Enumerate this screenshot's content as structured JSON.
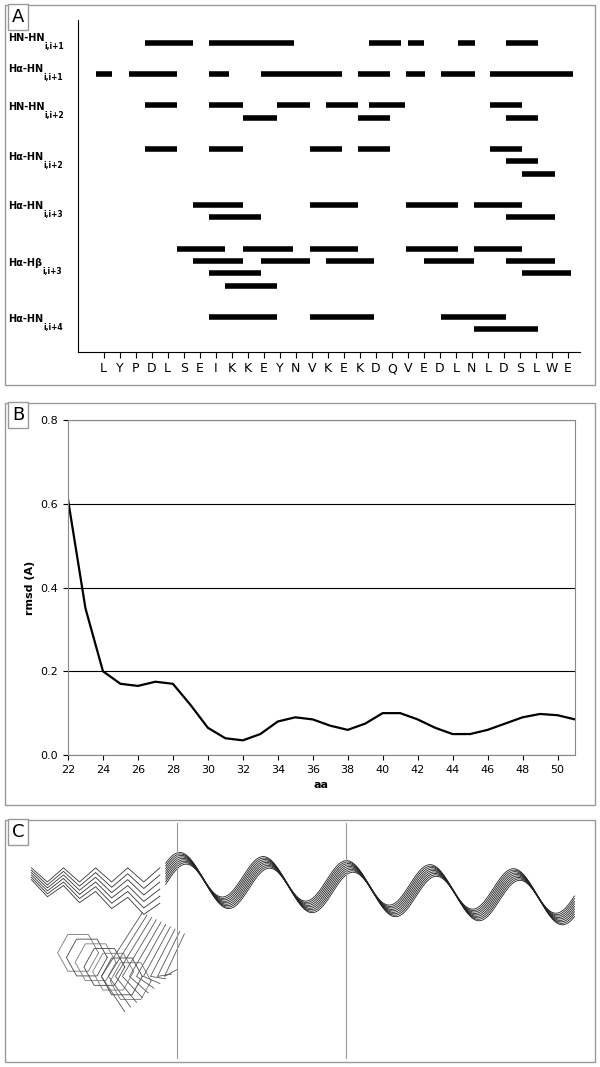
{
  "chart_data": [
    {
      "panel": "A",
      "type": "interval",
      "color": "#000000",
      "tick_labels": "x",
      "categories": [
        "L",
        "Y",
        "P",
        "D",
        "L",
        "S",
        "E",
        "I",
        "K",
        "K",
        "E",
        "Y",
        "N",
        "V",
        "K",
        "E",
        "K",
        "D",
        "Q",
        "V",
        "E",
        "D",
        "L",
        "N",
        "L",
        "D",
        "S",
        "L",
        "W",
        "E"
      ],
      "xlim": [
        -1.6,
        29.75
      ],
      "rows": [
        {
          "label": "HN-HN",
          "subscript": "i,i+1",
          "intervals": [
            [
              2.6,
              5.6
            ],
            [
              6.6,
              11.9
            ],
            [
              16.6,
              18.6
            ],
            [
              19.0,
              20.0
            ],
            [
              22.1,
              23.2
            ],
            [
              25.1,
              27.1
            ]
          ]
        },
        {
          "label": "Hα-HN",
          "subscript": "i,i+1",
          "intervals": [
            [
              -0.5,
              0.5
            ],
            [
              1.6,
              4.6
            ],
            [
              6.6,
              7.8
            ],
            [
              9.8,
              14.9
            ],
            [
              15.9,
              17.9
            ],
            [
              18.9,
              20.1
            ],
            [
              21.1,
              23.2
            ],
            [
              24.1,
              29.3
            ]
          ]
        },
        {
          "label": "HN-HN",
          "subscript": "i,i+2",
          "intervals": [
            [
              2.6,
              4.6
            ],
            [
              6.6,
              8.7
            ],
            [
              8.7,
              10.8
            ],
            [
              10.8,
              12.9
            ],
            [
              13.9,
              15.9
            ],
            [
              15.9,
              17.9
            ],
            [
              16.6,
              18.8
            ],
            [
              24.1,
              26.1
            ],
            [
              25.1,
              27.1
            ]
          ]
        },
        {
          "label": "Hα-HN",
          "subscript": "i,i+2",
          "intervals": [
            [
              2.6,
              4.6
            ],
            [
              6.6,
              8.7
            ],
            [
              12.9,
              14.9
            ],
            [
              15.9,
              17.9
            ],
            [
              24.1,
              26.1
            ],
            [
              25.1,
              27.1
            ],
            [
              26.1,
              28.2
            ]
          ]
        },
        {
          "label": "Hα-HN",
          "subscript": "i,i+3",
          "intervals": [
            [
              5.6,
              8.7
            ],
            [
              6.6,
              9.8
            ],
            [
              12.9,
              15.9
            ],
            [
              18.9,
              22.1
            ],
            [
              23.1,
              26.1
            ],
            [
              25.1,
              28.2
            ]
          ]
        },
        {
          "label": "Hα-Hβ",
          "subscript": "i,i+3",
          "intervals": [
            [
              4.6,
              7.6
            ],
            [
              5.6,
              8.7
            ],
            [
              6.6,
              9.8
            ],
            [
              7.6,
              10.8
            ],
            [
              8.7,
              11.8
            ],
            [
              9.8,
              12.9
            ],
            [
              12.9,
              15.9
            ],
            [
              13.9,
              16.9
            ],
            [
              18.9,
              22.1
            ],
            [
              20.0,
              23.1
            ],
            [
              23.1,
              26.1
            ],
            [
              25.1,
              28.2
            ],
            [
              26.1,
              29.2
            ]
          ]
        },
        {
          "label": "Hα-HN",
          "subscript": "i,i+4",
          "intervals": [
            [
              6.6,
              10.8
            ],
            [
              12.9,
              16.9
            ],
            [
              21.1,
              25.1
            ],
            [
              23.1,
              27.1
            ]
          ]
        }
      ]
    },
    {
      "panel": "B",
      "type": "line",
      "color": "#000000",
      "grid": true,
      "xlabel": "aa",
      "ylabel": "rmsd (A)",
      "x": [
        22,
        23,
        24,
        25,
        26,
        27,
        28,
        29,
        30,
        31,
        32,
        33,
        34,
        35,
        36,
        37,
        38,
        39,
        40,
        41,
        42,
        43,
        44,
        45,
        46,
        47,
        48,
        49,
        50,
        51
      ],
      "values": [
        0.61,
        0.35,
        0.2,
        0.17,
        0.165,
        0.175,
        0.17,
        0.12,
        0.065,
        0.04,
        0.035,
        0.05,
        0.08,
        0.09,
        0.085,
        0.07,
        0.06,
        0.075,
        0.1,
        0.1,
        0.085,
        0.065,
        0.05,
        0.05,
        0.06,
        0.075,
        0.09,
        0.098,
        0.095,
        0.085
      ],
      "xlim": [
        22,
        51
      ],
      "xticks": [
        22,
        24,
        26,
        28,
        30,
        32,
        34,
        36,
        38,
        40,
        42,
        44,
        46,
        48,
        50
      ],
      "ylim": [
        0,
        0.8
      ],
      "yticks": [
        {
          "value": 0,
          "label": "0.0"
        },
        0.2,
        0.4,
        0.6,
        0.8
      ]
    },
    {
      "panel": "C",
      "type": "image",
      "tick_labels": false
    }
  ]
}
